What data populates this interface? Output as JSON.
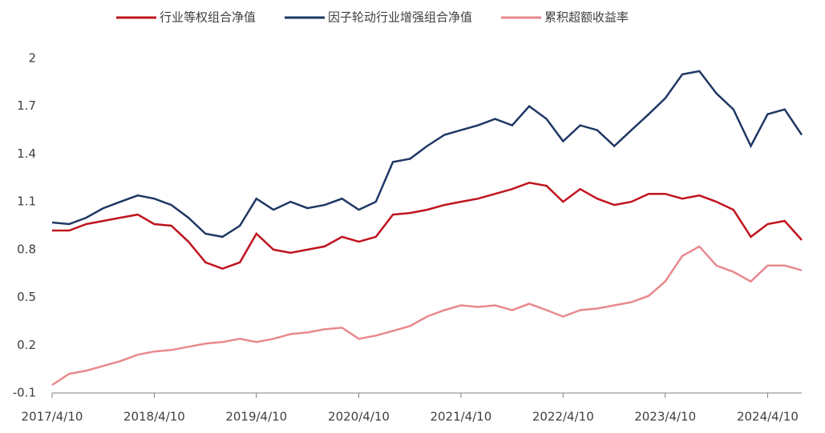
{
  "chart_data": {
    "type": "line",
    "x": [
      "2017/4/10",
      "2017/6/10",
      "2017/8/10",
      "2017/10/10",
      "2017/12/10",
      "2018/2/10",
      "2018/4/10",
      "2018/6/10",
      "2018/8/10",
      "2018/10/10",
      "2018/12/10",
      "2019/2/10",
      "2019/4/10",
      "2019/6/10",
      "2019/8/10",
      "2019/10/10",
      "2019/12/10",
      "2020/2/10",
      "2020/4/10",
      "2020/6/10",
      "2020/8/10",
      "2020/10/10",
      "2020/12/10",
      "2021/2/10",
      "2021/4/10",
      "2021/6/10",
      "2021/8/10",
      "2021/10/10",
      "2021/12/10",
      "2022/2/10",
      "2022/4/10",
      "2022/6/10",
      "2022/8/10",
      "2022/10/10",
      "2022/12/10",
      "2023/2/10",
      "2023/4/10",
      "2023/6/10",
      "2023/8/10",
      "2023/10/10",
      "2023/12/10",
      "2024/2/10",
      "2024/4/10",
      "2024/6/10",
      "2024/8/10"
    ],
    "series": [
      {
        "name": "行业等权组合净值",
        "color": "#c0141e",
        "values": [
          0.92,
          0.92,
          0.96,
          0.98,
          1.0,
          1.02,
          0.96,
          0.95,
          0.85,
          0.72,
          0.68,
          0.72,
          0.9,
          0.8,
          0.78,
          0.8,
          0.82,
          0.88,
          0.85,
          0.88,
          1.02,
          1.03,
          1.05,
          1.08,
          1.1,
          1.12,
          1.15,
          1.18,
          1.22,
          1.2,
          1.1,
          1.18,
          1.12,
          1.08,
          1.1,
          1.15,
          1.15,
          1.12,
          1.14,
          1.1,
          1.05,
          0.88,
          0.96,
          0.98,
          0.86
        ]
      },
      {
        "name": "因子轮动行业增强组合净值",
        "color": "#1f3864",
        "values": [
          0.97,
          0.96,
          1.0,
          1.06,
          1.1,
          1.14,
          1.12,
          1.08,
          1.0,
          0.9,
          0.88,
          0.95,
          1.12,
          1.05,
          1.1,
          1.06,
          1.08,
          1.12,
          1.05,
          1.1,
          1.35,
          1.37,
          1.45,
          1.52,
          1.55,
          1.58,
          1.62,
          1.58,
          1.7,
          1.62,
          1.48,
          1.58,
          1.55,
          1.45,
          1.55,
          1.65,
          1.75,
          1.9,
          1.92,
          1.78,
          1.68,
          1.45,
          1.65,
          1.68,
          1.52
        ]
      },
      {
        "name": "累积超额收益率",
        "color": "#e8898d",
        "values": [
          -0.05,
          0.02,
          0.04,
          0.07,
          0.1,
          0.14,
          0.16,
          0.17,
          0.19,
          0.21,
          0.22,
          0.24,
          0.22,
          0.24,
          0.27,
          0.28,
          0.3,
          0.31,
          0.24,
          0.26,
          0.29,
          0.32,
          0.38,
          0.42,
          0.45,
          0.44,
          0.45,
          0.42,
          0.46,
          0.42,
          0.38,
          0.42,
          0.43,
          0.45,
          0.47,
          0.51,
          0.6,
          0.76,
          0.82,
          0.7,
          0.66,
          0.6,
          0.7,
          0.7,
          0.67
        ]
      }
    ],
    "xlim": [
      "2017/4/10",
      "2024/8/10"
    ],
    "xticks": [
      "2017/4/10",
      "2018/4/10",
      "2019/4/10",
      "2020/4/10",
      "2021/4/10",
      "2022/4/10",
      "2023/4/10",
      "2024/4/10"
    ],
    "ylim": [
      -0.1,
      2
    ],
    "yticks": [
      -0.1,
      0.2,
      0.5,
      0.8,
      1.1,
      1.4,
      1.7,
      2
    ]
  }
}
